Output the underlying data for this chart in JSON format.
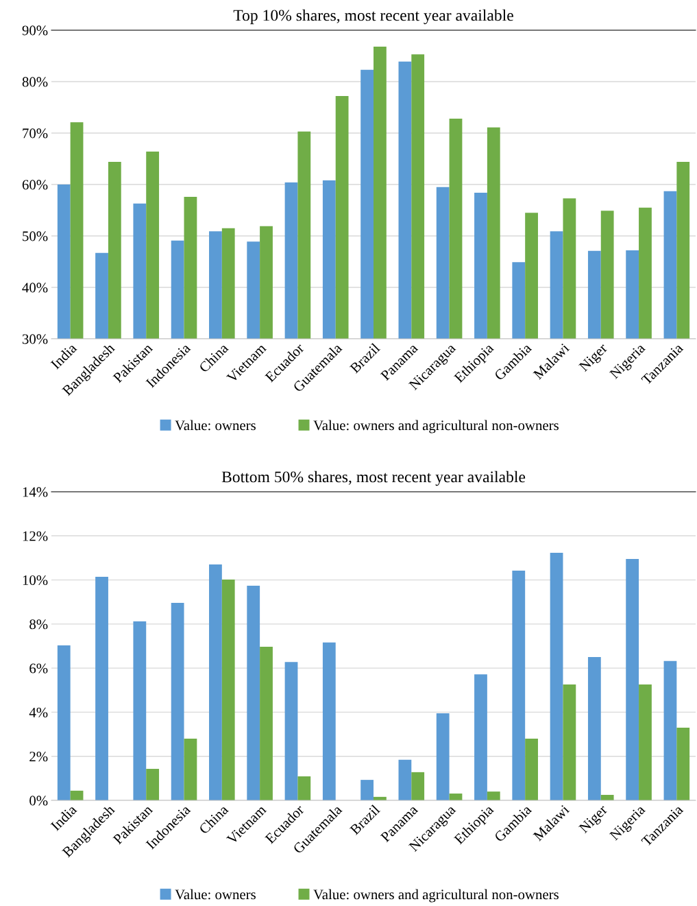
{
  "chart_data": [
    {
      "type": "bar",
      "title": "Top 10% shares, most recent year available",
      "categories": [
        "India",
        "Bangladesh",
        "Pakistan",
        "Indonesia",
        "China",
        "Vietnam",
        "Ecuador",
        "Guatemala",
        "Brazil",
        "Panama",
        "Nicaragua",
        "Ethiopia",
        "Gambia",
        "Malawi",
        "Niger",
        "Nigeria",
        "Tanzania"
      ],
      "series": [
        {
          "name": "Value: owners",
          "color": "#5b9bd5",
          "values": [
            60.0,
            46.7,
            56.3,
            49.1,
            50.9,
            48.9,
            60.4,
            60.8,
            82.3,
            83.9,
            59.5,
            58.4,
            44.9,
            50.9,
            47.1,
            47.2,
            58.7
          ]
        },
        {
          "name": "Value: owners and agricultural non-owners",
          "color": "#70ad47",
          "values": [
            72.1,
            64.4,
            66.4,
            57.6,
            51.5,
            51.9,
            70.3,
            77.2,
            86.8,
            85.3,
            72.8,
            71.1,
            54.5,
            57.3,
            54.9,
            55.5,
            64.4
          ]
        }
      ],
      "ylim": [
        30,
        90
      ],
      "yticks": [
        {
          "value": 30,
          "label": "30%"
        },
        {
          "value": 40,
          "label": "40%"
        },
        {
          "value": 50,
          "label": "50%"
        },
        {
          "value": 60,
          "label": "60%"
        },
        {
          "value": 70,
          "label": "70%"
        },
        {
          "value": 80,
          "label": "80%"
        },
        {
          "value": 90,
          "label": "90%"
        }
      ],
      "grid": "y",
      "legend": "bottom"
    },
    {
      "type": "bar",
      "title": "Bottom 50% shares, most recent year available",
      "categories": [
        "India",
        "Bangladesh",
        "Pakistan",
        "Indonesia",
        "China",
        "Vietnam",
        "Ecuador",
        "Guatemala",
        "Brazil",
        "Panama",
        "Nicaragua",
        "Ethiopia",
        "Gambia",
        "Malawi",
        "Niger",
        "Nigeria",
        "Tanzania"
      ],
      "series": [
        {
          "name": "Value: owners",
          "color": "#5b9bd5",
          "values": [
            7.03,
            10.14,
            8.12,
            8.96,
            10.7,
            9.74,
            6.28,
            7.16,
            0.93,
            1.84,
            3.95,
            5.72,
            10.42,
            11.23,
            6.5,
            10.95,
            6.32
          ]
        },
        {
          "name": "Value: owners and agricultural non-owners",
          "color": "#70ad47",
          "values": [
            0.44,
            null,
            1.43,
            2.8,
            10.02,
            6.97,
            1.09,
            null,
            0.16,
            1.28,
            0.31,
            0.4,
            2.8,
            5.26,
            0.25,
            5.26,
            3.3
          ]
        }
      ],
      "ylim": [
        0,
        14
      ],
      "yticks": [
        {
          "value": 0,
          "label": "0%"
        },
        {
          "value": 2,
          "label": "2%"
        },
        {
          "value": 4,
          "label": "4%"
        },
        {
          "value": 6,
          "label": "6%"
        },
        {
          "value": 8,
          "label": "8%"
        },
        {
          "value": 10,
          "label": "10%"
        },
        {
          "value": 12,
          "label": "12%"
        },
        {
          "value": 14,
          "label": "14%"
        }
      ],
      "grid": "y",
      "legend": "bottom"
    }
  ]
}
